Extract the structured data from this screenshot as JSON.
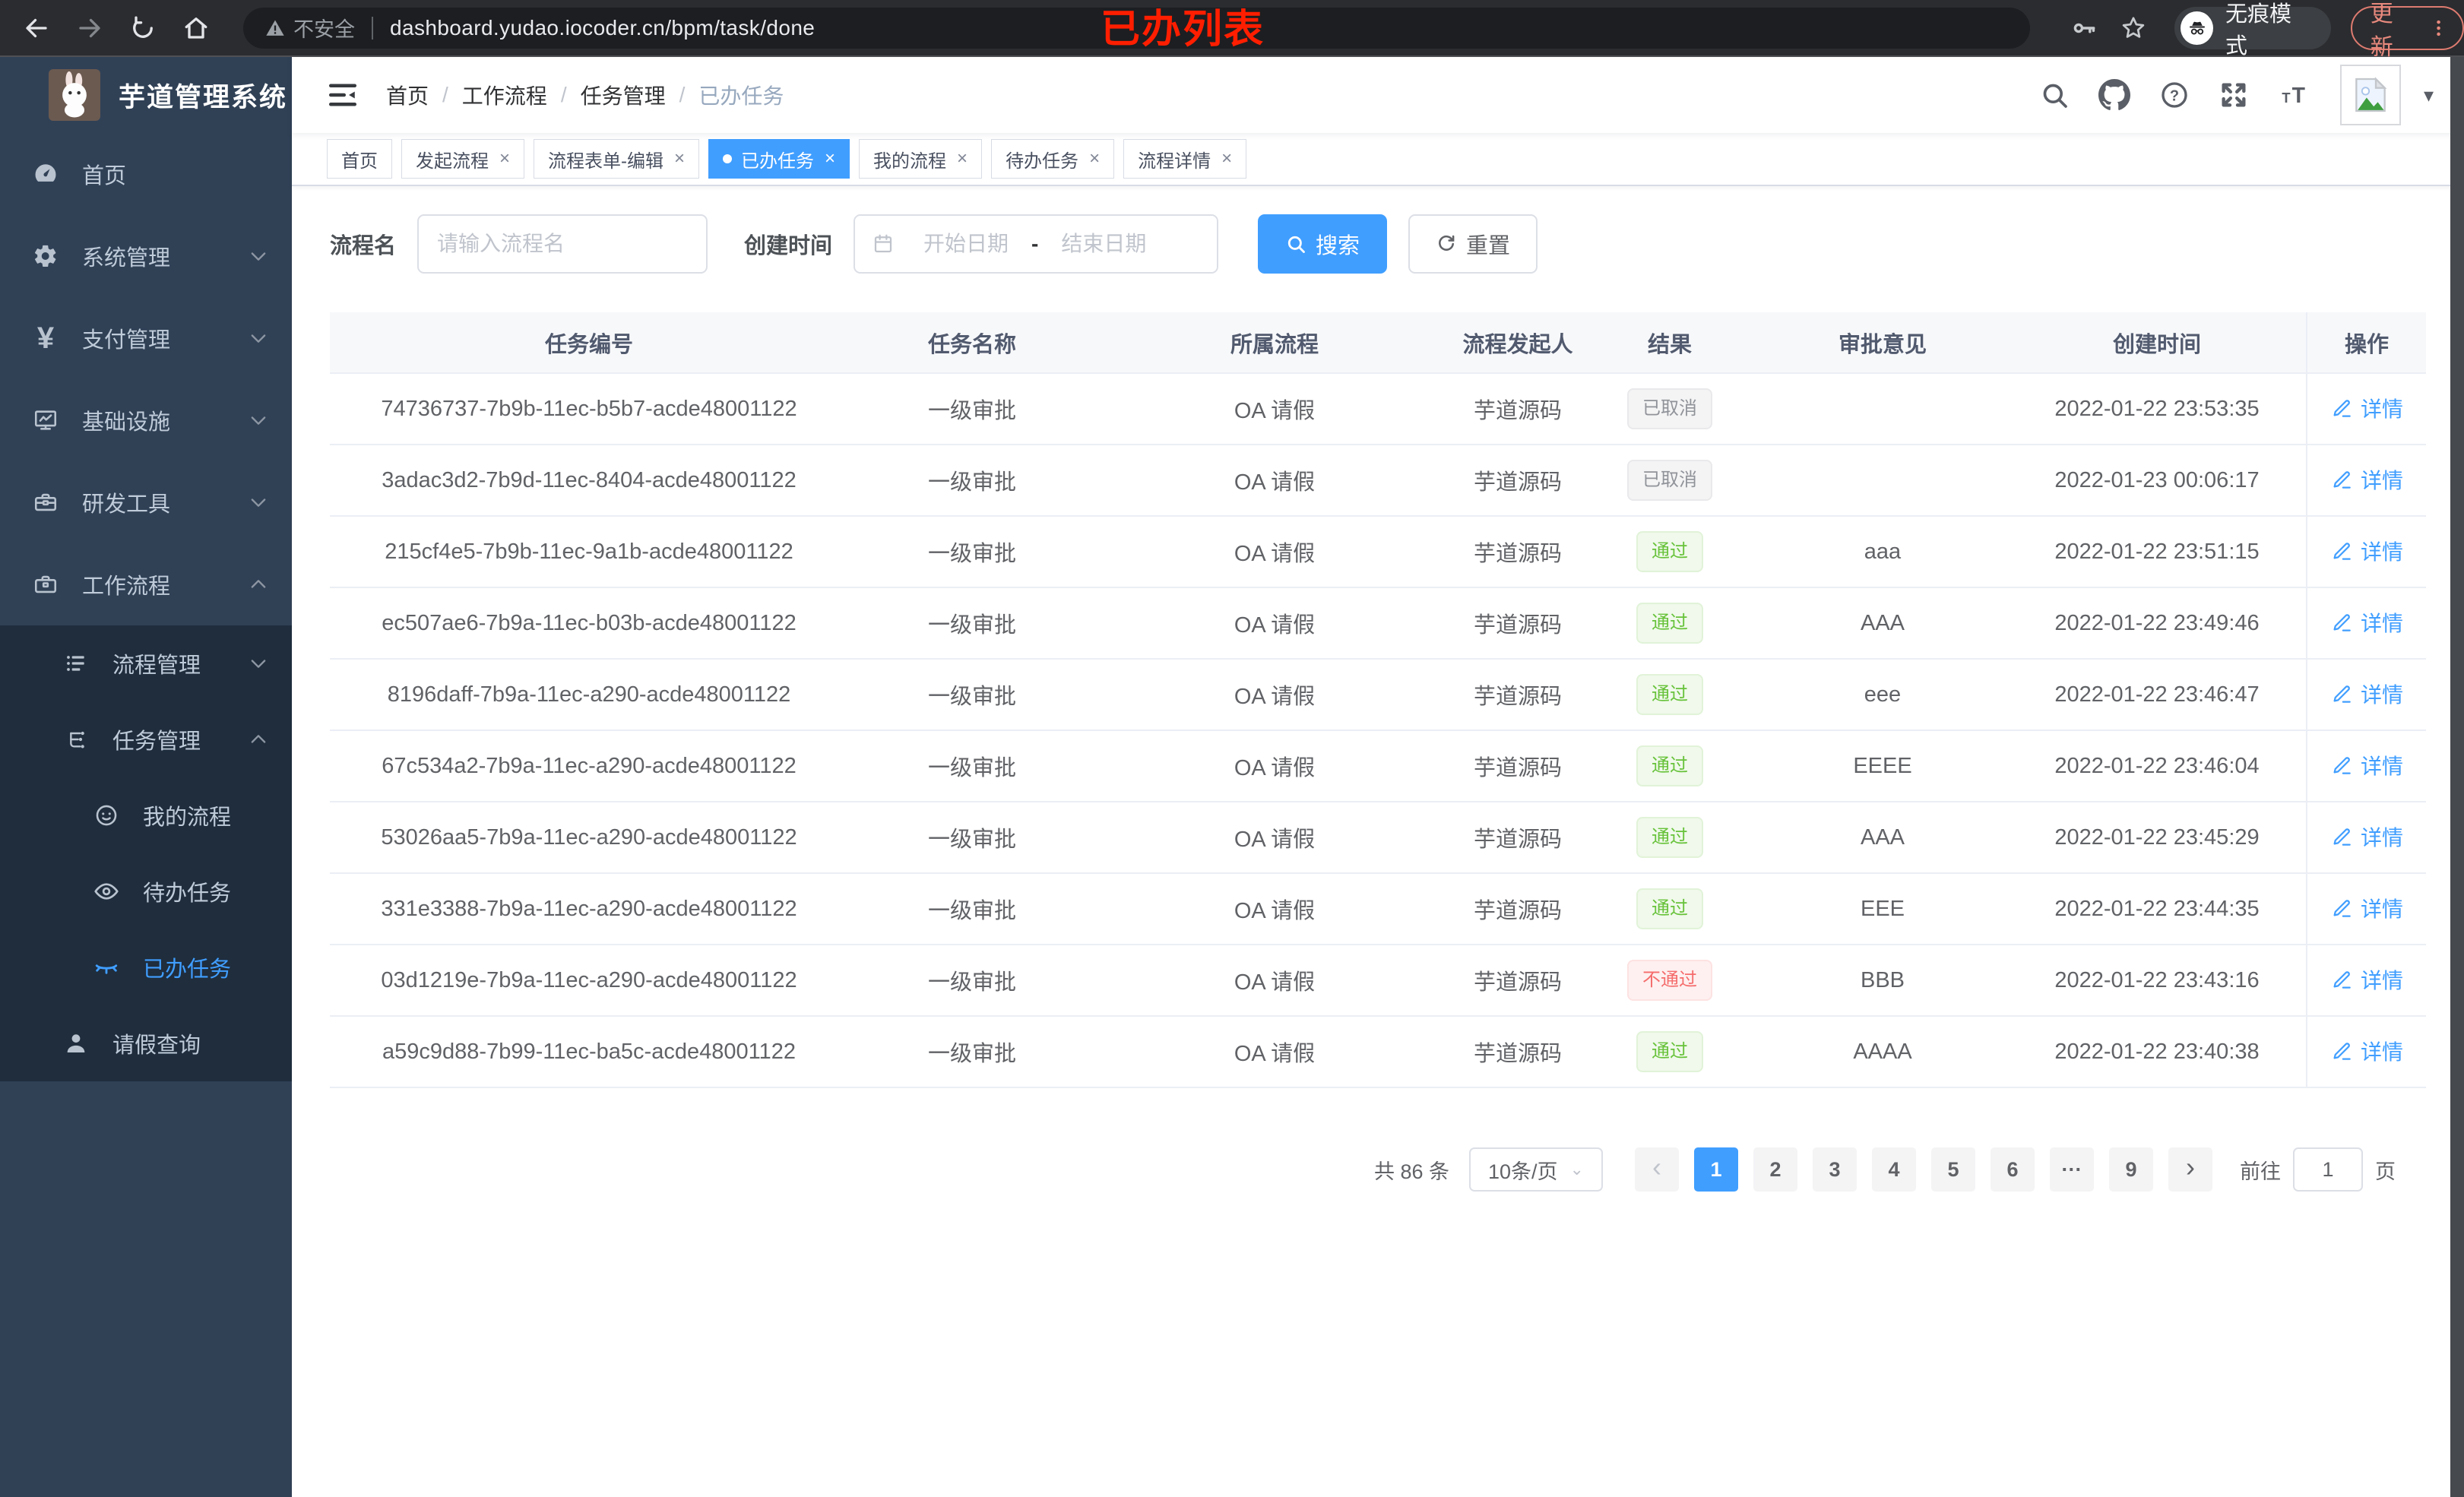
{
  "colors": {
    "accent": "#409eff",
    "success": "#67c23a",
    "danger": "#f56c6c",
    "info": "#909399",
    "sidebar_bg": "#304156",
    "submenu_bg": "#1f2d3d",
    "annotation_red": "#ff1e00"
  },
  "browser": {
    "security_label": "不安全",
    "url": "dashboard.yudao.iocoder.cn/bpm/task/done",
    "incognito_label": "无痕模式",
    "update_label": "更新",
    "annotation": "已办列表"
  },
  "sidebar": {
    "app_title": "芋道管理系统",
    "items": [
      {
        "key": "home",
        "label": "首页",
        "icon": "gauge-icon",
        "level": 1,
        "chevron": "",
        "dark": false,
        "active": false
      },
      {
        "key": "system",
        "label": "系统管理",
        "icon": "gear-icon",
        "level": 1,
        "chevron": "down",
        "dark": false,
        "active": false
      },
      {
        "key": "payment",
        "label": "支付管理",
        "icon": "yen-icon",
        "level": 1,
        "chevron": "down",
        "dark": false,
        "active": false
      },
      {
        "key": "infra",
        "label": "基础设施",
        "icon": "monitor-icon",
        "level": 1,
        "chevron": "down",
        "dark": false,
        "active": false
      },
      {
        "key": "dev-tools",
        "label": "研发工具",
        "icon": "toolbox-icon",
        "level": 1,
        "chevron": "down",
        "dark": false,
        "active": false
      },
      {
        "key": "workflow",
        "label": "工作流程",
        "icon": "briefcase-icon",
        "level": 1,
        "chevron": "up",
        "dark": false,
        "active": false
      },
      {
        "key": "process-mgmt",
        "label": "流程管理",
        "icon": "list-icon",
        "level": 2,
        "chevron": "down",
        "dark": true,
        "active": false
      },
      {
        "key": "task-mgmt",
        "label": "任务管理",
        "icon": "flow-icon",
        "level": 2,
        "chevron": "up",
        "dark": true,
        "active": false
      },
      {
        "key": "my-process",
        "label": "我的流程",
        "icon": "face-icon",
        "level": 3,
        "chevron": "",
        "dark": true,
        "active": false
      },
      {
        "key": "todo-tasks",
        "label": "待办任务",
        "icon": "eye-open-icon",
        "level": 3,
        "chevron": "",
        "dark": true,
        "active": false
      },
      {
        "key": "done-tasks",
        "label": "已办任务",
        "icon": "eye-closed-icon",
        "level": 3,
        "chevron": "",
        "dark": true,
        "active": true
      },
      {
        "key": "leave-query",
        "label": "请假查询",
        "icon": "person-icon",
        "level": 2,
        "chevron": "",
        "dark": true,
        "active": false
      }
    ]
  },
  "navbar": {
    "breadcrumb": [
      "首页",
      "工作流程",
      "任务管理",
      "已办任务"
    ]
  },
  "tabs": [
    {
      "key": "home",
      "label": "首页",
      "closable": false,
      "active": false
    },
    {
      "key": "start-process",
      "label": "发起流程",
      "closable": true,
      "active": false
    },
    {
      "key": "form-edit",
      "label": "流程表单-编辑",
      "closable": true,
      "active": false
    },
    {
      "key": "done-tasks",
      "label": "已办任务",
      "closable": true,
      "active": true
    },
    {
      "key": "my-process",
      "label": "我的流程",
      "closable": true,
      "active": false
    },
    {
      "key": "todo-tasks",
      "label": "待办任务",
      "closable": true,
      "active": false
    },
    {
      "key": "process-detail",
      "label": "流程详情",
      "closable": true,
      "active": false
    }
  ],
  "filters": {
    "name_label": "流程名",
    "name_placeholder": "请输入流程名",
    "time_label": "创建时间",
    "start_placeholder": "开始日期",
    "range_separator": "-",
    "end_placeholder": "结束日期",
    "search_label": "搜索",
    "reset_label": "重置"
  },
  "table": {
    "columns": [
      "任务编号",
      "任务名称",
      "所属流程",
      "流程发起人",
      "结果",
      "审批意见",
      "创建时间",
      "操作"
    ],
    "action_label": "详情",
    "rows": [
      {
        "id": "74736737-7b9b-11ec-b5b7-acde48001122",
        "name": "一级审批",
        "process": "OA 请假",
        "starter": "芋道源码",
        "result": "已取消",
        "result_type": "info",
        "comment": "",
        "created": "2022-01-22 23:53:35"
      },
      {
        "id": "3adac3d2-7b9d-11ec-8404-acde48001122",
        "name": "一级审批",
        "process": "OA 请假",
        "starter": "芋道源码",
        "result": "已取消",
        "result_type": "info",
        "comment": "",
        "created": "2022-01-23 00:06:17"
      },
      {
        "id": "215cf4e5-7b9b-11ec-9a1b-acde48001122",
        "name": "一级审批",
        "process": "OA 请假",
        "starter": "芋道源码",
        "result": "通过",
        "result_type": "success",
        "comment": "aaa",
        "created": "2022-01-22 23:51:15"
      },
      {
        "id": "ec507ae6-7b9a-11ec-b03b-acde48001122",
        "name": "一级审批",
        "process": "OA 请假",
        "starter": "芋道源码",
        "result": "通过",
        "result_type": "success",
        "comment": "AAA",
        "created": "2022-01-22 23:49:46"
      },
      {
        "id": "8196daff-7b9a-11ec-a290-acde48001122",
        "name": "一级审批",
        "process": "OA 请假",
        "starter": "芋道源码",
        "result": "通过",
        "result_type": "success",
        "comment": "eee",
        "created": "2022-01-22 23:46:47"
      },
      {
        "id": "67c534a2-7b9a-11ec-a290-acde48001122",
        "name": "一级审批",
        "process": "OA 请假",
        "starter": "芋道源码",
        "result": "通过",
        "result_type": "success",
        "comment": "EEEE",
        "created": "2022-01-22 23:46:04"
      },
      {
        "id": "53026aa5-7b9a-11ec-a290-acde48001122",
        "name": "一级审批",
        "process": "OA 请假",
        "starter": "芋道源码",
        "result": "通过",
        "result_type": "success",
        "comment": "AAA",
        "created": "2022-01-22 23:45:29"
      },
      {
        "id": "331e3388-7b9a-11ec-a290-acde48001122",
        "name": "一级审批",
        "process": "OA 请假",
        "starter": "芋道源码",
        "result": "通过",
        "result_type": "success",
        "comment": "EEE",
        "created": "2022-01-22 23:44:35"
      },
      {
        "id": "03d1219e-7b9a-11ec-a290-acde48001122",
        "name": "一级审批",
        "process": "OA 请假",
        "starter": "芋道源码",
        "result": "不通过",
        "result_type": "danger",
        "comment": "BBB",
        "created": "2022-01-22 23:43:16"
      },
      {
        "id": "a59c9d88-7b99-11ec-ba5c-acde48001122",
        "name": "一级审批",
        "process": "OA 请假",
        "starter": "芋道源码",
        "result": "通过",
        "result_type": "success",
        "comment": "AAAA",
        "created": "2022-01-22 23:40:38"
      }
    ]
  },
  "pagination": {
    "total_label": "共 86 条",
    "page_size_label": "10条/页",
    "pages": [
      "1",
      "2",
      "3",
      "4",
      "5",
      "6",
      "...",
      "9"
    ],
    "active_page": "1",
    "goto_label": "前往",
    "goto_value": "1",
    "page_unit": "页"
  }
}
